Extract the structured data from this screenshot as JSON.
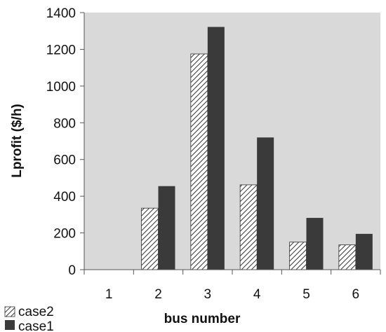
{
  "chart_data": {
    "type": "bar",
    "title": "",
    "xlabel": "bus number",
    "ylabel": "Lprofit ($/h)",
    "categories": [
      "1",
      "2",
      "3",
      "4",
      "5",
      "6"
    ],
    "series": [
      {
        "name": "case2",
        "color": "#ffffff",
        "pattern": "diagonal-hatch",
        "values": [
          0,
          335,
          1175,
          462,
          150,
          135
        ]
      },
      {
        "name": "case1",
        "color": "#3a3a3a",
        "pattern": "solid",
        "values": [
          0,
          455,
          1322,
          720,
          282,
          195
        ]
      }
    ],
    "ylim": [
      0,
      1400
    ],
    "yticks": [
      0,
      200,
      400,
      600,
      800,
      1000,
      1200,
      1400
    ],
    "ytick_labels": [
      "0",
      "200",
      "400",
      "600",
      "800",
      "1000",
      "1200",
      "1400"
    ],
    "grid": false,
    "plot_background": "#d9d9d9",
    "legend_position": "bottom-left"
  }
}
